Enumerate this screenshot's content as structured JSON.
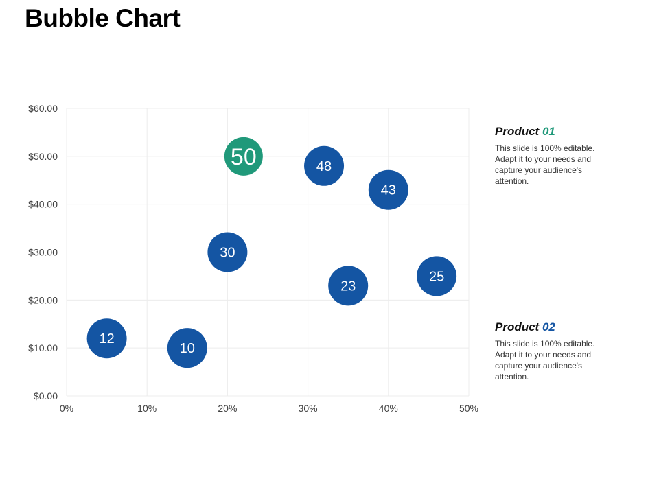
{
  "title": "Bubble Chart",
  "colors": {
    "product1": "#20997A",
    "product2": "#1455A3"
  },
  "legend": [
    {
      "name": "Product",
      "suffix": "01",
      "description": "This slide is 100% editable. Adapt it to your needs and capture your audience's attention.",
      "color": "#20997A"
    },
    {
      "name": "Product",
      "suffix": "02",
      "description": "This slide is 100% editable. Adapt it to your needs and capture your audience's attention.",
      "color": "#1455A3"
    }
  ],
  "chart_data": {
    "type": "scatter",
    "title": "Bubble Chart",
    "xlabel": "",
    "ylabel": "",
    "xlim": [
      0,
      50
    ],
    "ylim": [
      0,
      60
    ],
    "xticks": [
      "0%",
      "10%",
      "20%",
      "30%",
      "40%",
      "50%"
    ],
    "yticks": [
      "$0.00",
      "$10.00",
      "$20.00",
      "$30.00",
      "$40.00",
      "$50.00",
      "$60.00"
    ],
    "grid": true,
    "legend_position": "right",
    "series": [
      {
        "name": "Product 01",
        "color": "#20997A",
        "points": [
          {
            "x": 22,
            "y": 50,
            "label": "50"
          }
        ]
      },
      {
        "name": "Product 02",
        "color": "#1455A3",
        "points": [
          {
            "x": 32,
            "y": 48,
            "label": "48"
          },
          {
            "x": 40,
            "y": 43,
            "label": "43"
          },
          {
            "x": 20,
            "y": 30,
            "label": "30"
          },
          {
            "x": 46,
            "y": 25,
            "label": "25"
          },
          {
            "x": 35,
            "y": 23,
            "label": "23"
          },
          {
            "x": 5,
            "y": 12,
            "label": "12"
          },
          {
            "x": 15,
            "y": 10,
            "label": "10"
          }
        ]
      }
    ]
  }
}
